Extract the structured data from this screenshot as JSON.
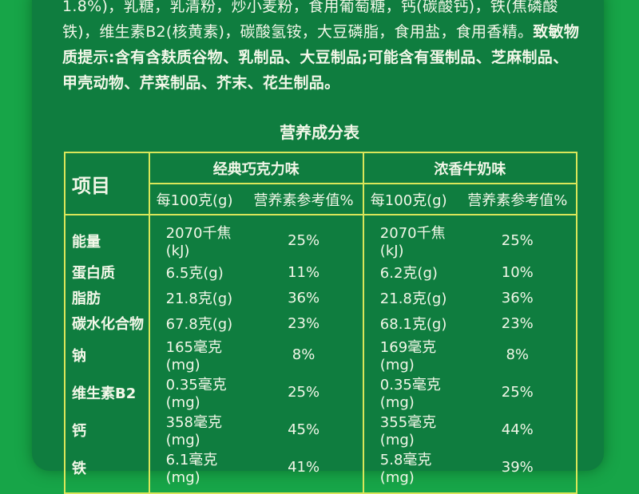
{
  "ingredients": {
    "line1": "1.8%)，乳糖，乳清粉，炒小麦粉，食用葡萄糖，钙(碳酸钙)，铁(焦磷酸",
    "line2": "铁)，维生素B2(核黄素)，碳酸氢铵，大豆磷脂，食用盐，食用香精。",
    "allergen": "致敏物质提示:含有含麸质谷物、乳制品、大豆制品;可能含有蛋制品、芝麻制品、甲壳动物、芹菜制品、芥末、花生制品。"
  },
  "table": {
    "title": "营养成分表",
    "item_header": "项目",
    "flavors": [
      "经典巧克力味",
      "浓香牛奶味"
    ],
    "sub_headers": [
      "每100克(g)",
      "营养素参考值%",
      "每100克(g)",
      "营养素参考值%"
    ],
    "rows": [
      {
        "item": "能量",
        "c_amt": "2070千焦(kJ)",
        "c_pct": "25%",
        "m_amt": "2070千焦(kJ)",
        "m_pct": "25%"
      },
      {
        "item": "蛋白质",
        "c_amt": "6.5克(g)",
        "c_pct": "11%",
        "m_amt": "6.2克(g)",
        "m_pct": "10%"
      },
      {
        "item": "脂肪",
        "c_amt": "21.8克(g)",
        "c_pct": "36%",
        "m_amt": "21.8克(g)",
        "m_pct": "36%"
      },
      {
        "item": "碳水化合物",
        "c_amt": "67.8克(g)",
        "c_pct": "23%",
        "m_amt": "68.1克(g)",
        "m_pct": "23%"
      },
      {
        "item": "钠",
        "c_amt": "165毫克(mg)",
        "c_pct": "8%",
        "m_amt": "169毫克(mg)",
        "m_pct": "8%"
      },
      {
        "item": "维生素B2",
        "c_amt": "0.35毫克(mg)",
        "c_pct": "25%",
        "m_amt": "0.35毫克(mg)",
        "m_pct": "25%"
      },
      {
        "item": "钙",
        "c_amt": "358毫克(mg)",
        "c_pct": "45%",
        "m_amt": "355毫克(mg)",
        "m_pct": "44%"
      },
      {
        "item": "铁",
        "c_amt": "6.1毫克(mg)",
        "c_pct": "41%",
        "m_amt": "5.8毫克(mg)",
        "m_pct": "39%"
      }
    ]
  },
  "colors": {
    "background": "#17a548",
    "card": "#0f7d3f",
    "lines": "#d9e65a"
  }
}
